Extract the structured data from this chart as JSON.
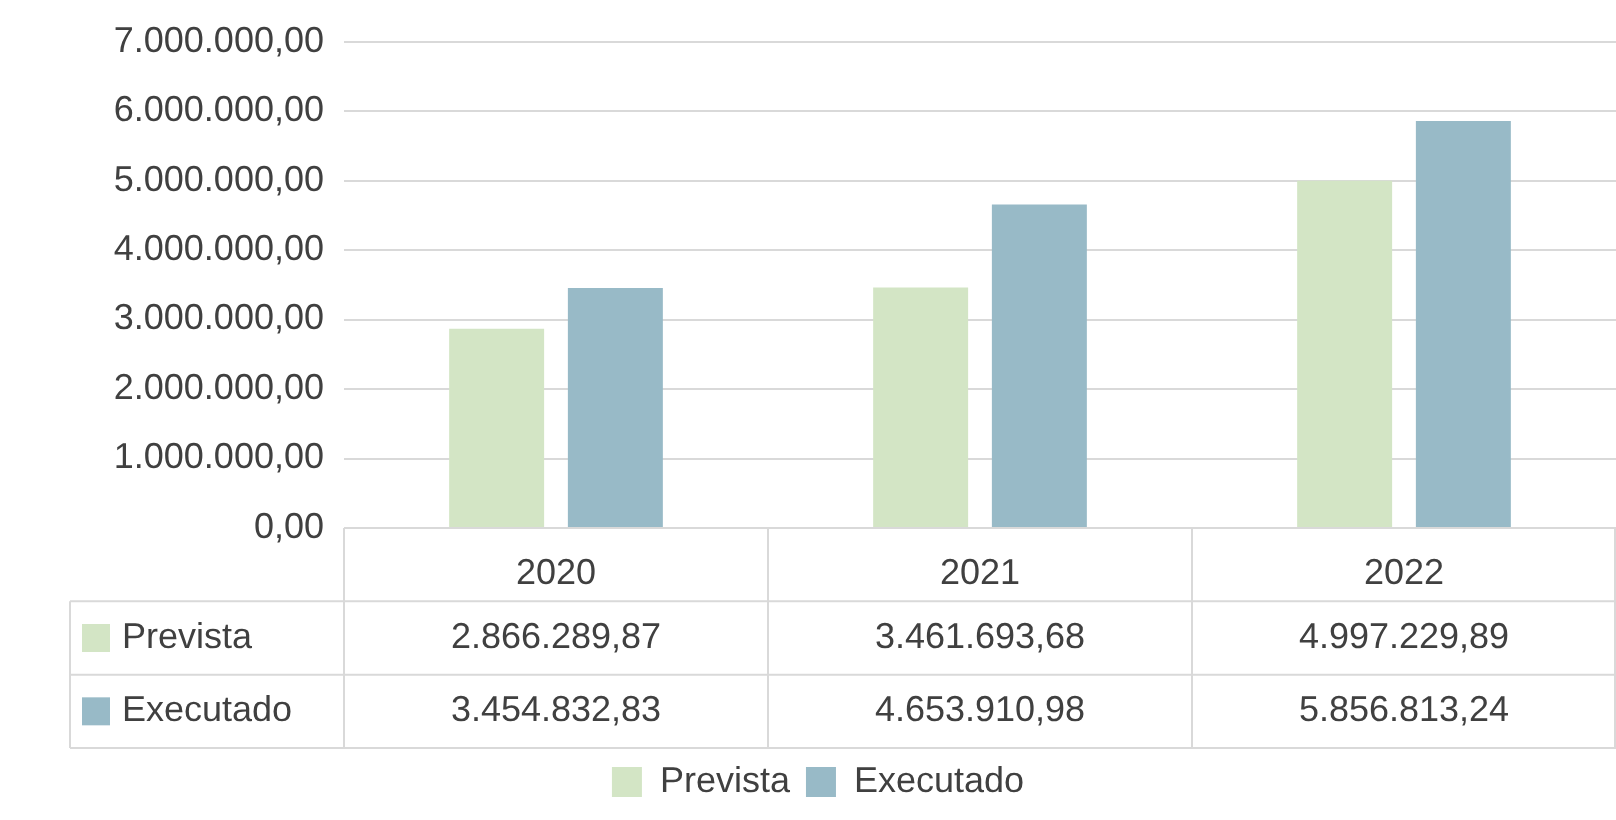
{
  "chart_data": {
    "type": "bar",
    "categories": [
      "2020",
      "2021",
      "2022"
    ],
    "series": [
      {
        "name": "Prevista",
        "color": "#d3e5c5",
        "values": [
          2866289.87,
          3461693.68,
          4997229.89
        ],
        "value_labels": [
          "2.866.289,87",
          "3.461.693,68",
          "4.997.229,89"
        ]
      },
      {
        "name": "Executado",
        "color": "#98bac7",
        "values": [
          3454832.83,
          4653910.98,
          5856813.24
        ],
        "value_labels": [
          "3.454.832,83",
          "4.653.910,98",
          "5.856.813,24"
        ]
      }
    ],
    "ylim": [
      0,
      7000000
    ],
    "yticks": [
      {
        "value": 0,
        "label": "0,00"
      },
      {
        "value": 1000000,
        "label": "1.000.000,00"
      },
      {
        "value": 2000000,
        "label": "2.000.000,00"
      },
      {
        "value": 3000000,
        "label": "3.000.000,00"
      },
      {
        "value": 4000000,
        "label": "4.000.000,00"
      },
      {
        "value": 5000000,
        "label": "5.000.000,00"
      },
      {
        "value": 6000000,
        "label": "6.000.000,00"
      },
      {
        "value": 7000000,
        "label": "7.000.000,00"
      }
    ],
    "grid": "y",
    "legend": "bottom",
    "data_labels": true
  }
}
